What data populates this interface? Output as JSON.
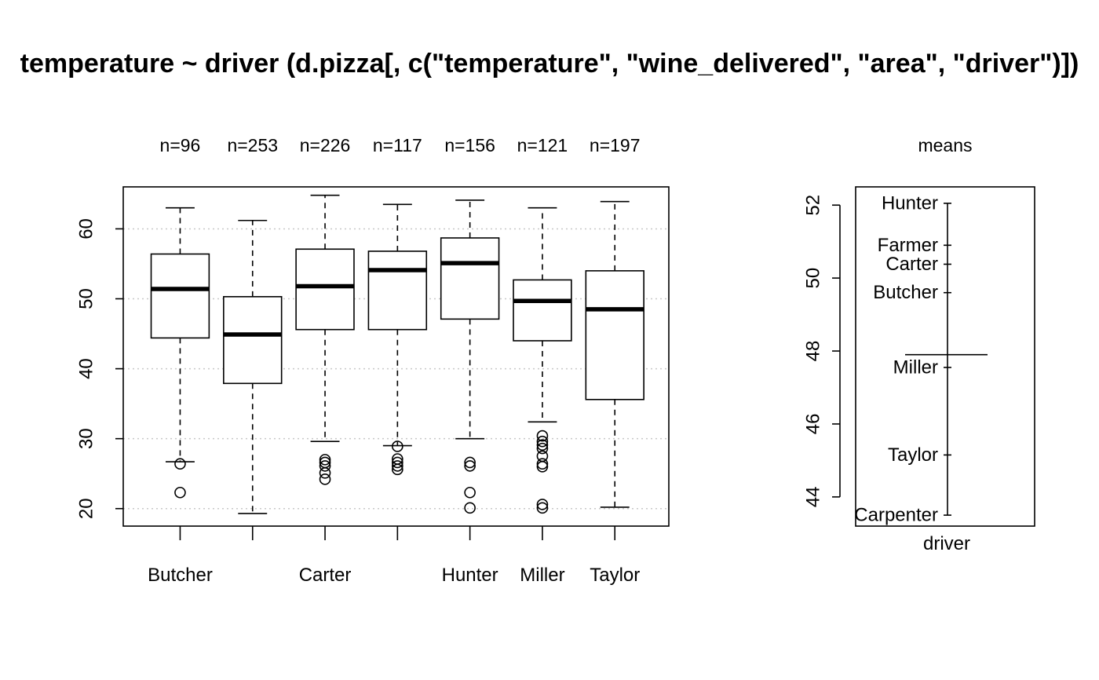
{
  "title": "temperature ~ driver (d.pizza[, c(\"temperature\", \"wine_delivered\", \"area\", \"driver\")])",
  "chart_data": [
    {
      "type": "boxplot",
      "categories": [
        "Butcher",
        "Carpenter",
        "Carter",
        "Farmer",
        "Hunter",
        "Miller",
        "Taylor"
      ],
      "x_tick_labels_shown": [
        "Butcher",
        "",
        "Carter",
        "",
        "Hunter",
        "Miller",
        "Taylor"
      ],
      "n_labels": [
        "n=96",
        "n=253",
        "n=226",
        "n=117",
        "n=156",
        "n=121",
        "n=197"
      ],
      "y_ticks": [
        20,
        30,
        40,
        50,
        60
      ],
      "ylim": [
        17.5,
        66
      ],
      "grid": "horizontal dotted",
      "boxes": [
        {
          "name": "Butcher",
          "whisker_low": 26.7,
          "q1": 44.4,
          "median": 51.4,
          "q3": 56.4,
          "whisker_high": 63.0,
          "outliers": [
            26.4,
            22.3
          ]
        },
        {
          "name": "Carpenter",
          "whisker_low": 19.3,
          "q1": 37.9,
          "median": 44.9,
          "q3": 50.3,
          "whisker_high": 61.2,
          "outliers": []
        },
        {
          "name": "Carter",
          "whisker_low": 29.6,
          "q1": 45.6,
          "median": 51.8,
          "q3": 57.1,
          "whisker_high": 64.8,
          "outliers": [
            27.0,
            26.6,
            26.1,
            25.1,
            24.2
          ]
        },
        {
          "name": "Farmer",
          "whisker_low": 29.0,
          "q1": 45.6,
          "median": 54.1,
          "q3": 56.8,
          "whisker_high": 63.5,
          "outliers": [
            28.9,
            27.1,
            26.6,
            26.1,
            25.6
          ]
        },
        {
          "name": "Hunter",
          "whisker_low": 30.0,
          "q1": 47.1,
          "median": 55.1,
          "q3": 58.7,
          "whisker_high": 64.1,
          "outliers": [
            26.6,
            26.1,
            22.3,
            20.1
          ]
        },
        {
          "name": "Miller",
          "whisker_low": 32.4,
          "q1": 44.0,
          "median": 49.7,
          "q3": 52.7,
          "whisker_high": 63.0,
          "outliers": [
            30.4,
            29.6,
            29.1,
            28.6,
            27.5,
            26.4,
            26.0,
            20.6,
            20.1
          ]
        },
        {
          "name": "Taylor",
          "whisker_low": 20.2,
          "q1": 35.6,
          "median": 48.5,
          "q3": 54.0,
          "whisker_high": 63.9,
          "outliers": []
        }
      ]
    },
    {
      "type": "dotchart-means",
      "title": "means",
      "xlabel": "driver",
      "y_ticks": [
        44,
        46,
        48,
        50,
        52
      ],
      "ylim": [
        43.2,
        52.5
      ],
      "grand_mean": 47.9,
      "points": [
        {
          "name": "Hunter",
          "value": 52.05
        },
        {
          "name": "Farmer",
          "value": 50.9
        },
        {
          "name": "Carter",
          "value": 50.38
        },
        {
          "name": "Butcher",
          "value": 49.6
        },
        {
          "name": "Miller",
          "value": 47.55
        },
        {
          "name": "Taylor",
          "value": 45.15
        },
        {
          "name": "Carpenter",
          "value": 43.5
        }
      ]
    }
  ]
}
